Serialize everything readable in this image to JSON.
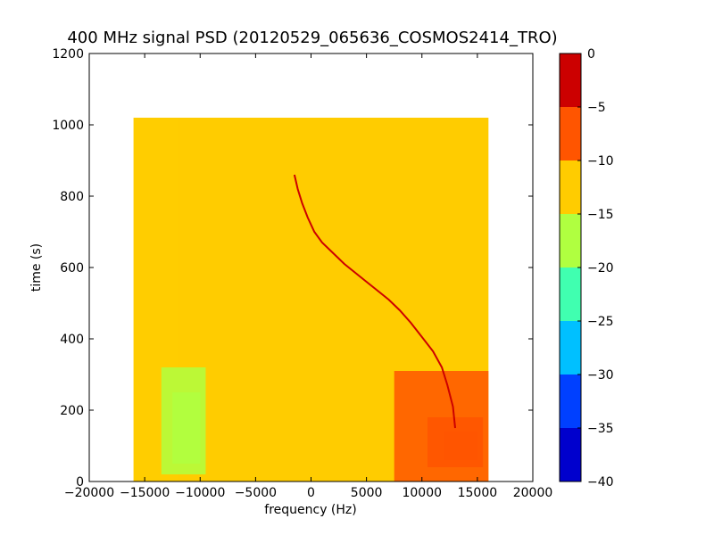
{
  "chart_data": {
    "type": "heatmap",
    "title": "400 MHz signal PSD (20120529_065636_COSMOS2414_TRO)",
    "xlabel": "frequency (Hz)",
    "ylabel": "time (s)",
    "xlim": [
      -20000,
      20000
    ],
    "ylim": [
      0,
      1200
    ],
    "xticks": [
      -20000,
      -15000,
      -10000,
      -5000,
      0,
      5000,
      10000,
      15000,
      20000
    ],
    "yticks": [
      0,
      200,
      400,
      600,
      800,
      1000,
      1200
    ],
    "data_extent": {
      "x": [
        -16000,
        16000
      ],
      "y": [
        0,
        1020
      ]
    },
    "background_level": -12,
    "colorbar": {
      "levels": [
        -40,
        -35,
        -30,
        -25,
        -20,
        -15,
        -10,
        -5,
        0
      ],
      "colors": [
        "#0000cd",
        "#0040ff",
        "#00c0ff",
        "#40ffb0",
        "#b0ff40",
        "#ffcc00",
        "#ff5500",
        "#cc0000"
      ]
    },
    "regions": [
      {
        "x": [
          -16000,
          -12000
        ],
        "y": [
          0,
          1020
        ],
        "level": -13
      },
      {
        "x": [
          -13500,
          -9500
        ],
        "y": [
          20,
          320
        ],
        "level": -17
      },
      {
        "x": [
          -12500,
          -10000
        ],
        "y": [
          50,
          250
        ],
        "level": -18
      },
      {
        "x": [
          7500,
          16000
        ],
        "y": [
          0,
          310
        ],
        "level": -9
      },
      {
        "x": [
          10500,
          15500
        ],
        "y": [
          40,
          180
        ],
        "level": -7
      },
      {
        "x": [
          12000,
          15000
        ],
        "y": [
          60,
          140
        ],
        "level": -6
      }
    ],
    "series": [
      {
        "x": [
          -1500,
          -1200,
          -800,
          -300,
          300,
          1000,
          2000,
          3000,
          4000,
          5000,
          6000,
          7000,
          8000,
          9000,
          10000,
          11000,
          11800,
          12300,
          12800,
          13000
        ],
        "y": [
          860,
          820,
          780,
          740,
          700,
          670,
          640,
          610,
          585,
          560,
          535,
          510,
          480,
          445,
          405,
          365,
          320,
          270,
          210,
          150
        ],
        "level": -2
      }
    ]
  }
}
